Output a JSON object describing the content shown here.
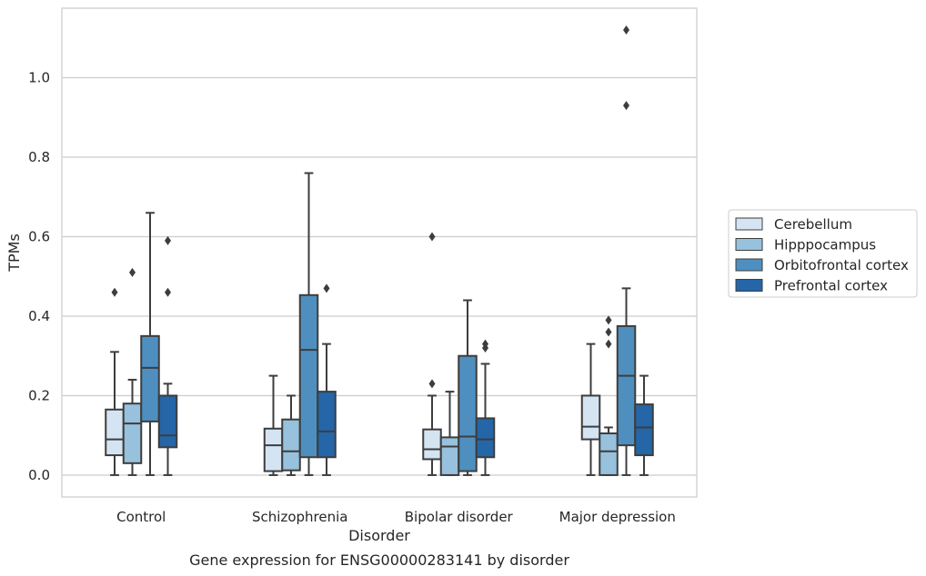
{
  "chart_data": {
    "type": "box",
    "xlabel": "Disorder",
    "ylabel": "TPMs",
    "caption": "Gene expression for ENSG00000283141 by disorder",
    "categories": [
      "Control",
      "Schizophrenia",
      "Bipolar disorder",
      "Major depression"
    ],
    "ylim": [
      -0.055,
      1.175
    ],
    "yticks": [
      "0.0",
      "0.2",
      "0.4",
      "0.6",
      "0.8",
      "1.0"
    ],
    "grid": true,
    "legend_position": "right",
    "series": [
      {
        "name": "Cerebellum",
        "color": "#d4e4f3",
        "boxes": [
          {
            "whislo": 0.0,
            "q1": 0.05,
            "med": 0.09,
            "q3": 0.165,
            "whishi": 0.31,
            "fliers": [
              0.46
            ]
          },
          {
            "whislo": 0.0,
            "q1": 0.01,
            "med": 0.075,
            "q3": 0.117,
            "whishi": 0.25,
            "fliers": []
          },
          {
            "whislo": 0.0,
            "q1": 0.04,
            "med": 0.065,
            "q3": 0.115,
            "whishi": 0.2,
            "fliers": [
              0.23,
              0.6
            ]
          },
          {
            "whislo": 0.0,
            "q1": 0.09,
            "med": 0.122,
            "q3": 0.2,
            "whishi": 0.33,
            "fliers": []
          }
        ]
      },
      {
        "name": "Hipppocampus",
        "color": "#97c1dd",
        "boxes": [
          {
            "whislo": 0.0,
            "q1": 0.03,
            "med": 0.13,
            "q3": 0.18,
            "whishi": 0.24,
            "fliers": [
              0.51
            ]
          },
          {
            "whislo": 0.0,
            "q1": 0.012,
            "med": 0.06,
            "q3": 0.14,
            "whishi": 0.2,
            "fliers": []
          },
          {
            "whislo": 0.0,
            "q1": 0.0,
            "med": 0.072,
            "q3": 0.095,
            "whishi": 0.21,
            "fliers": []
          },
          {
            "whislo": 0.0,
            "q1": 0.0,
            "med": 0.06,
            "q3": 0.105,
            "whishi": 0.12,
            "fliers": [
              0.33,
              0.36,
              0.39
            ]
          }
        ]
      },
      {
        "name": "Orbitofrontal cortex",
        "color": "#4e8fc0",
        "boxes": [
          {
            "whislo": 0.0,
            "q1": 0.135,
            "med": 0.27,
            "q3": 0.35,
            "whishi": 0.66,
            "fliers": []
          },
          {
            "whislo": 0.0,
            "q1": 0.045,
            "med": 0.315,
            "q3": 0.453,
            "whishi": 0.76,
            "fliers": []
          },
          {
            "whislo": 0.0,
            "q1": 0.01,
            "med": 0.097,
            "q3": 0.3,
            "whishi": 0.44,
            "fliers": []
          },
          {
            "whislo": 0.0,
            "q1": 0.075,
            "med": 0.25,
            "q3": 0.375,
            "whishi": 0.47,
            "fliers": [
              0.93,
              1.12
            ]
          }
        ]
      },
      {
        "name": "Prefrontal cortex",
        "color": "#2466a7",
        "boxes": [
          {
            "whislo": 0.0,
            "q1": 0.07,
            "med": 0.1,
            "q3": 0.2,
            "whishi": 0.23,
            "fliers": [
              0.46,
              0.59
            ]
          },
          {
            "whislo": 0.0,
            "q1": 0.045,
            "med": 0.11,
            "q3": 0.21,
            "whishi": 0.33,
            "fliers": [
              0.47
            ]
          },
          {
            "whislo": 0.0,
            "q1": 0.045,
            "med": 0.09,
            "q3": 0.143,
            "whishi": 0.28,
            "fliers": [
              0.32,
              0.33
            ]
          },
          {
            "whislo": 0.0,
            "q1": 0.05,
            "med": 0.12,
            "q3": 0.178,
            "whishi": 0.25,
            "fliers": []
          }
        ]
      }
    ]
  }
}
